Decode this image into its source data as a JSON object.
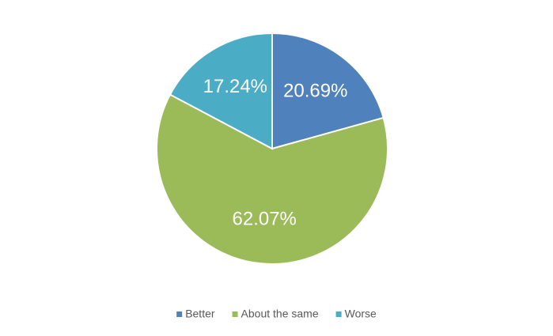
{
  "chart_data": {
    "type": "pie",
    "categories": [
      "Better",
      "About the same",
      "Worse"
    ],
    "values": [
      20.69,
      62.07,
      17.24
    ],
    "value_labels": [
      "20.69%",
      "62.07%",
      "17.24%"
    ],
    "colors": [
      "#4f81bd",
      "#9bbb59",
      "#4bacc6"
    ],
    "legend": "bottom"
  }
}
